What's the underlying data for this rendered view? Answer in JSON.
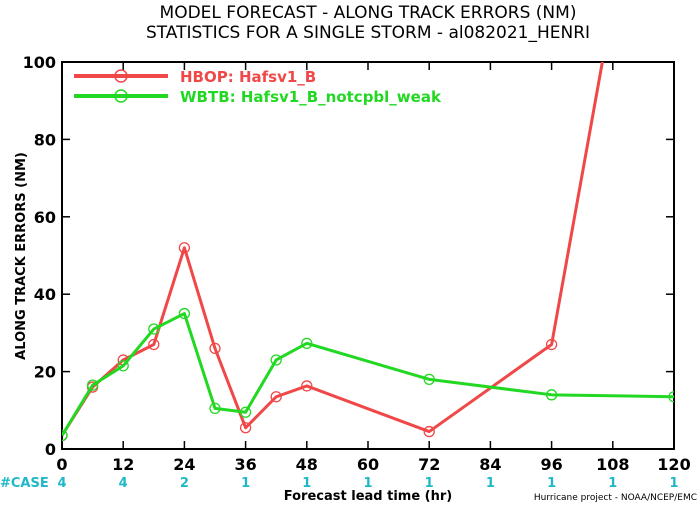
{
  "chart_data": {
    "type": "line",
    "title": "MODEL FORECAST - ALONG TRACK ERRORS (NM)",
    "subtitle": "STATISTICS FOR A SINGLE STORM - al082021_HENRI",
    "xlabel": "Forecast lead time (hr)",
    "ylabel": "ALONG TRACK ERRORS (NM)",
    "xlim": [
      0,
      120
    ],
    "ylim": [
      0,
      100
    ],
    "xticks": [
      "0",
      "12",
      "24",
      "36",
      "48",
      "60",
      "72",
      "84",
      "96",
      "108",
      "120"
    ],
    "yticks": [
      "0",
      "20",
      "40",
      "60",
      "80",
      "100"
    ],
    "legend_position": "top-left",
    "grid": false,
    "series": [
      {
        "name": "HBOP: Hafsv1_B",
        "color": "#f04848",
        "x": [
          0,
          6,
          12,
          18,
          24,
          30,
          36,
          42,
          48,
          72,
          96,
          108
        ],
        "y": [
          3.5,
          16,
          23,
          27,
          52,
          26,
          5.5,
          13.5,
          16.3,
          4.5,
          27,
          115
        ]
      },
      {
        "name": "WBTB: Hafsv1_B_notcpbl_weak",
        "color": "#22d822",
        "x": [
          0,
          6,
          12,
          18,
          24,
          30,
          36,
          42,
          48,
          72,
          96,
          120
        ],
        "y": [
          3.5,
          16.5,
          21.5,
          31,
          35,
          10.5,
          9.5,
          23,
          27.3,
          18,
          14,
          13.5
        ]
      }
    ],
    "cases": {
      "label": "#CASE",
      "x": [
        0,
        12,
        24,
        36,
        48,
        60,
        72,
        84,
        96,
        108,
        120
      ],
      "values": [
        "4",
        "4",
        "2",
        "1",
        "1",
        "1",
        "1",
        "1",
        "1",
        "1",
        "1"
      ]
    },
    "credit": "Hurricane project - NOAA/NCEP/EMC"
  }
}
